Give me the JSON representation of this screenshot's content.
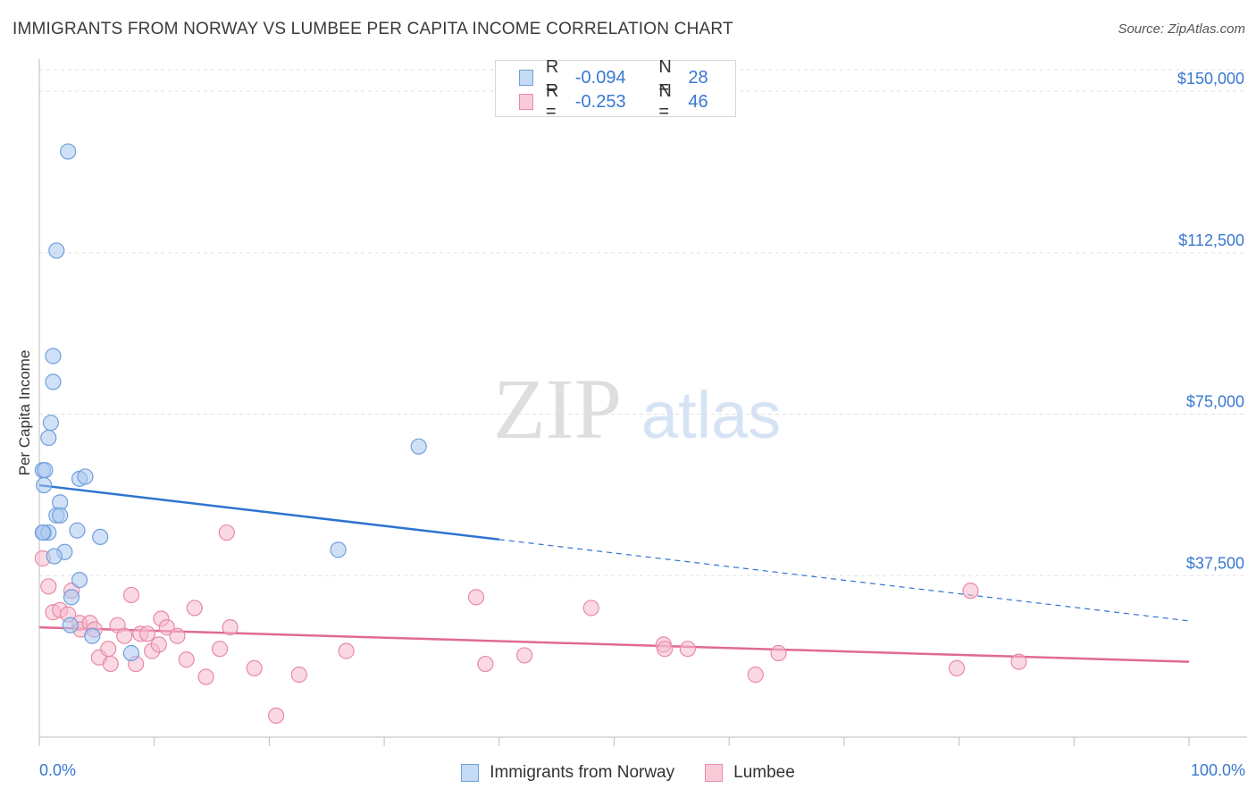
{
  "header": {
    "title": "IMMIGRANTS FROM NORWAY VS LUMBEE PER CAPITA INCOME CORRELATION CHART",
    "source": "Source: ZipAtlas.com"
  },
  "watermark": {
    "zip": "ZIP",
    "atlas": "atlas"
  },
  "legend_top": {
    "rows": [
      {
        "r_label": "R =",
        "r_value": "-0.094",
        "n_label": "N =",
        "n_value": "28"
      },
      {
        "r_label": "R =",
        "r_value": "-0.253",
        "n_label": "N =",
        "n_value": "46"
      }
    ]
  },
  "legend_bottom": {
    "items": [
      {
        "label": "Immigrants from Norway"
      },
      {
        "label": "Lumbee"
      }
    ]
  },
  "x_ticks": {
    "left": "0.0%",
    "right": "100.0%"
  },
  "colors": {
    "norway_fill": "#a9c8f0",
    "norway_stroke": "#6f9fdc",
    "norway_line": "#2f74d0",
    "lumbee_fill": "#f6b9cc",
    "lumbee_stroke": "#e88aa8",
    "lumbee_line": "#e06a93",
    "axis_label": "#3a78d0",
    "grid": "#e0e0e0"
  },
  "chart_data": {
    "type": "scatter",
    "title": "IMMIGRANTS FROM NORWAY VS LUMBEE PER CAPITA INCOME CORRELATION CHART",
    "xlabel": "",
    "ylabel": "Per Capita Income",
    "xlim": [
      0,
      100
    ],
    "ylim": [
      0,
      155000
    ],
    "y_ticks": [
      {
        "value": 37500,
        "label": "$37,500"
      },
      {
        "value": 75000,
        "label": "$75,000"
      },
      {
        "value": 112500,
        "label": "$112,500"
      },
      {
        "value": 150000,
        "label": "$150,000"
      }
    ],
    "grid": true,
    "legend_position": "top-center",
    "series": [
      {
        "name": "Immigrants from Norway",
        "r": -0.094,
        "n": 28,
        "trend": {
          "x0": 0,
          "y0": 58500,
          "x_solid_end": 40,
          "x1": 100,
          "y1": 27000
        },
        "points": [
          {
            "x": 2.5,
            "y": 136000
          },
          {
            "x": 1.5,
            "y": 113000
          },
          {
            "x": 1.2,
            "y": 88500
          },
          {
            "x": 1.2,
            "y": 82500
          },
          {
            "x": 1.0,
            "y": 73000
          },
          {
            "x": 0.8,
            "y": 69500
          },
          {
            "x": 0.3,
            "y": 62000
          },
          {
            "x": 0.5,
            "y": 62000
          },
          {
            "x": 0.4,
            "y": 58500
          },
          {
            "x": 3.5,
            "y": 60000
          },
          {
            "x": 4.0,
            "y": 60500
          },
          {
            "x": 1.8,
            "y": 54500
          },
          {
            "x": 1.5,
            "y": 51500
          },
          {
            "x": 1.8,
            "y": 51500
          },
          {
            "x": 3.3,
            "y": 48000
          },
          {
            "x": 0.4,
            "y": 47500
          },
          {
            "x": 0.8,
            "y": 47500
          },
          {
            "x": 5.3,
            "y": 46500
          },
          {
            "x": 2.2,
            "y": 43000
          },
          {
            "x": 1.3,
            "y": 42000
          },
          {
            "x": 3.5,
            "y": 36500
          },
          {
            "x": 2.8,
            "y": 32500
          },
          {
            "x": 2.7,
            "y": 26000
          },
          {
            "x": 4.6,
            "y": 23500
          },
          {
            "x": 8.0,
            "y": 19500
          },
          {
            "x": 26.0,
            "y": 43500
          },
          {
            "x": 33.0,
            "y": 67500
          },
          {
            "x": 0.3,
            "y": 47500
          }
        ]
      },
      {
        "name": "Lumbee",
        "r": -0.253,
        "n": 46,
        "trend": {
          "x0": 0,
          "y0": 25500,
          "x1": 100,
          "y1": 17500
        },
        "points": [
          {
            "x": 0.3,
            "y": 41500
          },
          {
            "x": 0.8,
            "y": 35000
          },
          {
            "x": 1.2,
            "y": 29000
          },
          {
            "x": 1.8,
            "y": 29500
          },
          {
            "x": 2.5,
            "y": 28500
          },
          {
            "x": 2.8,
            "y": 34000
          },
          {
            "x": 3.5,
            "y": 26500
          },
          {
            "x": 3.6,
            "y": 25000
          },
          {
            "x": 4.4,
            "y": 26500
          },
          {
            "x": 4.8,
            "y": 25000
          },
          {
            "x": 5.2,
            "y": 18500
          },
          {
            "x": 6.0,
            "y": 20500
          },
          {
            "x": 6.2,
            "y": 17000
          },
          {
            "x": 6.8,
            "y": 26000
          },
          {
            "x": 7.4,
            "y": 23500
          },
          {
            "x": 8.0,
            "y": 33000
          },
          {
            "x": 8.4,
            "y": 17000
          },
          {
            "x": 8.8,
            "y": 24000
          },
          {
            "x": 9.4,
            "y": 24000
          },
          {
            "x": 9.8,
            "y": 20000
          },
          {
            "x": 10.4,
            "y": 21500
          },
          {
            "x": 10.6,
            "y": 27500
          },
          {
            "x": 11.1,
            "y": 25500
          },
          {
            "x": 12.0,
            "y": 23500
          },
          {
            "x": 12.8,
            "y": 18000
          },
          {
            "x": 13.5,
            "y": 30000
          },
          {
            "x": 14.5,
            "y": 14000
          },
          {
            "x": 15.7,
            "y": 20500
          },
          {
            "x": 16.3,
            "y": 47500
          },
          {
            "x": 16.6,
            "y": 25500
          },
          {
            "x": 18.7,
            "y": 16000
          },
          {
            "x": 20.6,
            "y": 5000
          },
          {
            "x": 22.6,
            "y": 14500
          },
          {
            "x": 26.7,
            "y": 20000
          },
          {
            "x": 38.0,
            "y": 32500
          },
          {
            "x": 38.8,
            "y": 17000
          },
          {
            "x": 42.2,
            "y": 19000
          },
          {
            "x": 48.0,
            "y": 30000
          },
          {
            "x": 54.3,
            "y": 21500
          },
          {
            "x": 54.4,
            "y": 20500
          },
          {
            "x": 56.4,
            "y": 20500
          },
          {
            "x": 62.3,
            "y": 14500
          },
          {
            "x": 64.3,
            "y": 19500
          },
          {
            "x": 79.8,
            "y": 16000
          },
          {
            "x": 81.0,
            "y": 34000
          },
          {
            "x": 85.2,
            "y": 17500
          }
        ]
      }
    ]
  }
}
